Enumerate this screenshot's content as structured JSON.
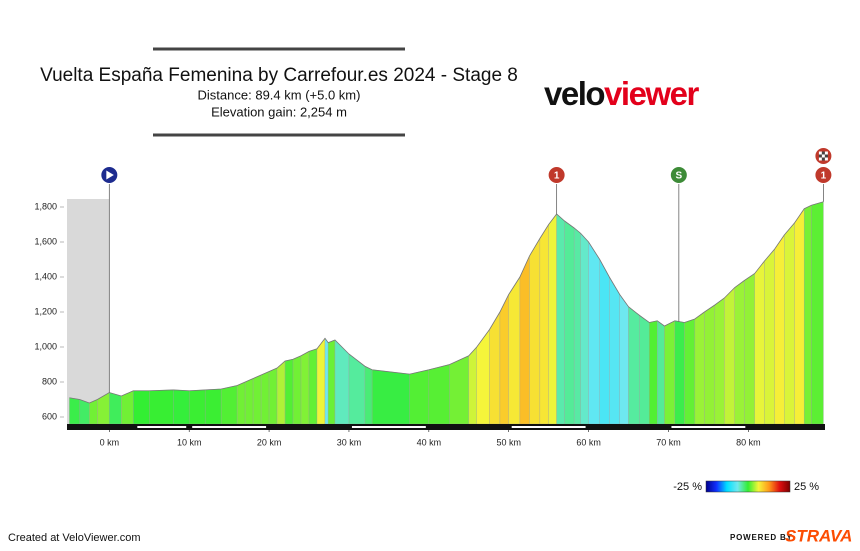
{
  "chart_data": {
    "type": "elevation-profile",
    "title": "Vuelta España Femenina by Carrefour.es 2024 - Stage 8",
    "subtitle_lines": [
      "Distance: 89.4 km (+5.0 km)",
      "Elevation gain: 2,254 m"
    ],
    "logo": {
      "part1": "velo",
      "part2": "viewer"
    },
    "x": [
      -5,
      -3.7,
      -2.5,
      -1.5,
      0,
      1.5,
      3,
      5,
      8,
      10,
      12,
      14,
      16,
      17,
      18,
      19,
      20,
      21,
      22,
      23,
      24,
      25,
      26,
      27,
      27.4,
      28.25,
      30,
      32,
      32.9,
      37.6,
      40,
      42.6,
      45,
      46,
      47.6,
      48.9,
      50,
      51.4,
      52.6,
      53.9,
      55,
      56,
      57,
      58.2,
      59,
      60,
      61.4,
      62.6,
      63.9,
      65,
      66.4,
      67.6,
      68.6,
      69.5,
      70.8,
      72,
      73.3,
      74.5,
      75.8,
      77,
      78.3,
      79.5,
      80.8,
      82,
      83.3,
      84.5,
      85.8,
      87,
      87.9,
      89.4
    ],
    "elevation": [
      710,
      700,
      680,
      700,
      740,
      720,
      750,
      750,
      755,
      750,
      755,
      760,
      780,
      800,
      820,
      840,
      860,
      880,
      920,
      930,
      950,
      975,
      990,
      1050,
      1025,
      1040,
      960,
      890,
      870,
      845,
      870,
      900,
      950,
      1000,
      1100,
      1200,
      1300,
      1400,
      1520,
      1620,
      1700,
      1760,
      1720,
      1680,
      1650,
      1600,
      1500,
      1400,
      1300,
      1230,
      1180,
      1140,
      1150,
      1120,
      1150,
      1140,
      1160,
      1200,
      1240,
      1280,
      1340,
      1380,
      1420,
      1490,
      1560,
      1640,
      1710,
      1790,
      1810,
      1830
    ],
    "xlim": [
      -5.3,
      89.6
    ],
    "ylim": [
      560,
      1840
    ],
    "xticks": [
      {
        "value": 0,
        "label": "0 km"
      },
      {
        "value": 10,
        "label": "10 km"
      },
      {
        "value": 20,
        "label": "20 km"
      },
      {
        "value": 30,
        "label": "30 km"
      },
      {
        "value": 40,
        "label": "40 km"
      },
      {
        "value": 50,
        "label": "50 km"
      },
      {
        "value": 60,
        "label": "60 km"
      },
      {
        "value": 70,
        "label": "70 km"
      },
      {
        "value": 80,
        "label": "80 km"
      }
    ],
    "yticks": [
      600,
      800,
      {
        "value": 1000,
        "label": "1,000"
      },
      {
        "value": 1200,
        "label": "1,200"
      },
      {
        "value": 1400,
        "label": "1,400"
      },
      {
        "value": 1600,
        "label": "1,600"
      },
      {
        "value": 1800,
        "label": "1,800"
      }
    ],
    "gradient_scale": {
      "min": {
        "value": -25,
        "label": "-25 %"
      },
      "max": {
        "value": 25,
        "label": "25 %"
      },
      "colors": [
        "#00008b",
        "#1030ff",
        "#00e0ff",
        "#70e8f0",
        "#33ee33",
        "#f5f53a",
        "#ff9a1a",
        "#e01010",
        "#7a0000"
      ]
    },
    "markers": [
      {
        "type": "start",
        "km": 0,
        "color": "#1d2b8f"
      },
      {
        "type": "climb",
        "km": 56,
        "label": "1",
        "color": "#c0392b"
      },
      {
        "type": "sprint",
        "km": 71.3,
        "label": "S",
        "color": "#3d8b37"
      },
      {
        "type": "finish",
        "km": 89.4,
        "label": "1",
        "color": "#c0392b"
      }
    ],
    "footer_left": "Created at VeloViewer.com",
    "footer_right": {
      "prefix": "POWERED BY",
      "brand": "STRAVA"
    }
  }
}
